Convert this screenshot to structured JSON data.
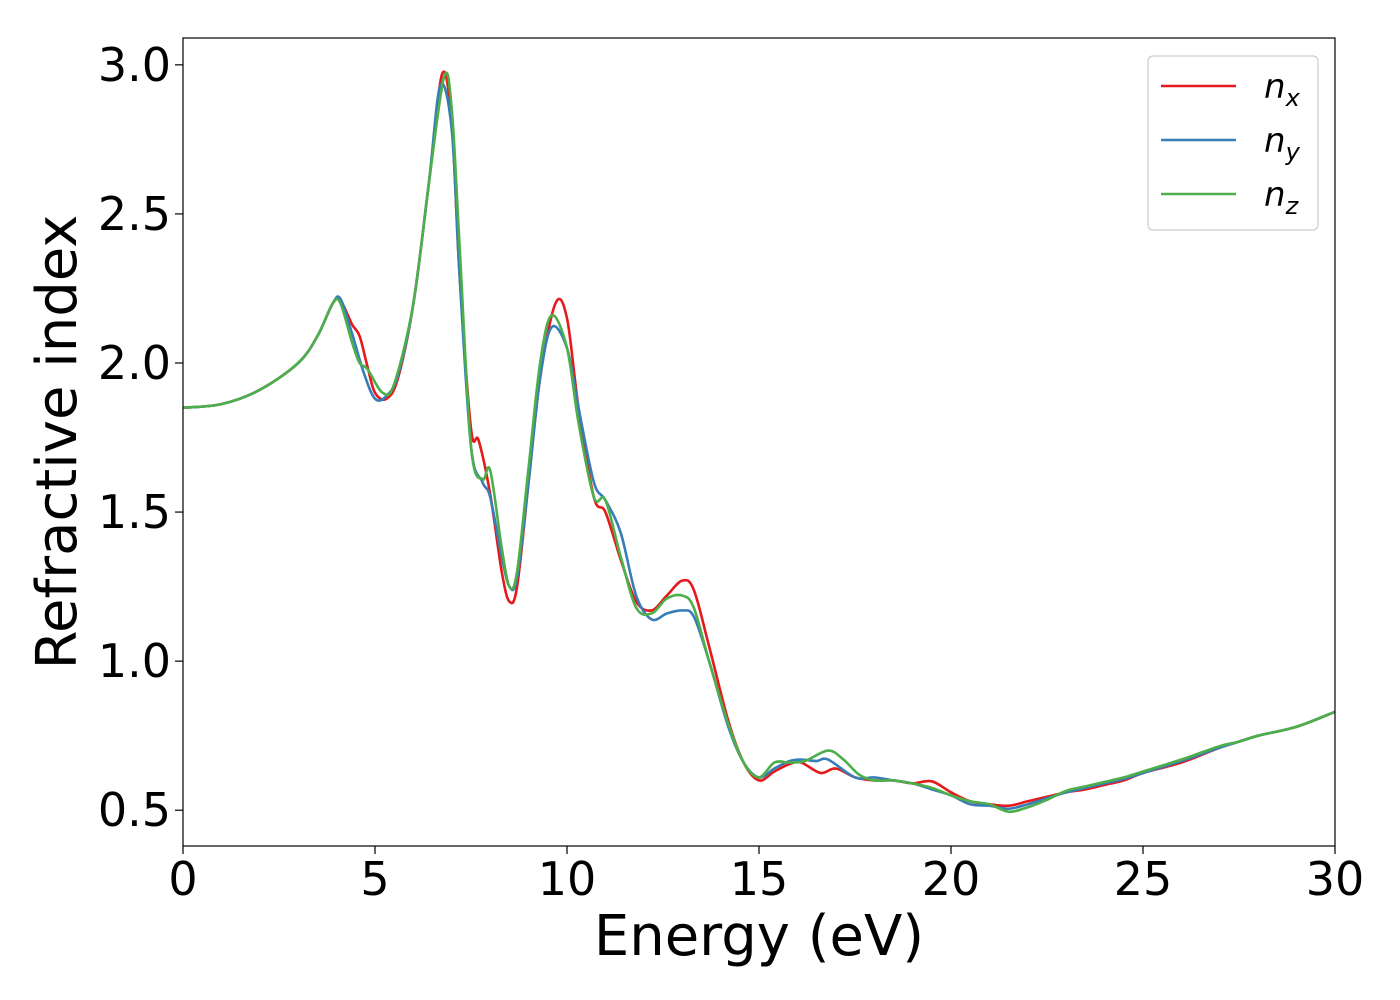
{
  "chart_data": {
    "type": "line",
    "xlabel": "Energy (eV)",
    "ylabel": "Refractive index",
    "xlim": [
      0,
      30
    ],
    "ylim": [
      0.38,
      3.09
    ],
    "xticks": [
      0,
      5,
      10,
      15,
      20,
      25,
      30
    ],
    "xtick_labels": [
      "0",
      "5",
      "10",
      "15",
      "20",
      "25",
      "30"
    ],
    "yticks": [
      0.5,
      1.0,
      1.5,
      2.0,
      2.5,
      3.0
    ],
    "ytick_labels": [
      "0.5",
      "1.0",
      "1.5",
      "2.0",
      "2.5",
      "3.0"
    ],
    "grid": false,
    "legend_position": "top-right",
    "series": [
      {
        "name": "n",
        "subscript": "x",
        "color": "#e41a1c",
        "points": [
          [
            0,
            1.85
          ],
          [
            1,
            1.862
          ],
          [
            2,
            1.91
          ],
          [
            3,
            2.0
          ],
          [
            3.5,
            2.09
          ],
          [
            3.9,
            2.2
          ],
          [
            4.1,
            2.21
          ],
          [
            4.4,
            2.13
          ],
          [
            4.6,
            2.09
          ],
          [
            4.8,
            1.99
          ],
          [
            5.0,
            1.9
          ],
          [
            5.3,
            1.88
          ],
          [
            5.6,
            1.95
          ],
          [
            6.0,
            2.2
          ],
          [
            6.4,
            2.6
          ],
          [
            6.75,
            2.97
          ],
          [
            7.0,
            2.8
          ],
          [
            7.2,
            2.3
          ],
          [
            7.5,
            1.78
          ],
          [
            7.7,
            1.74
          ],
          [
            8.0,
            1.56
          ],
          [
            8.3,
            1.3
          ],
          [
            8.5,
            1.2
          ],
          [
            8.7,
            1.25
          ],
          [
            9.0,
            1.6
          ],
          [
            9.3,
            1.95
          ],
          [
            9.7,
            2.2
          ],
          [
            10.0,
            2.15
          ],
          [
            10.3,
            1.85
          ],
          [
            10.7,
            1.55
          ],
          [
            11.0,
            1.5
          ],
          [
            11.4,
            1.34
          ],
          [
            11.8,
            1.2
          ],
          [
            12.2,
            1.17
          ],
          [
            12.6,
            1.22
          ],
          [
            13.0,
            1.27
          ],
          [
            13.3,
            1.24
          ],
          [
            13.7,
            1.05
          ],
          [
            14.2,
            0.8
          ],
          [
            14.6,
            0.66
          ],
          [
            15.0,
            0.6
          ],
          [
            15.4,
            0.63
          ],
          [
            15.8,
            0.655
          ],
          [
            16.1,
            0.66
          ],
          [
            16.6,
            0.625
          ],
          [
            17.0,
            0.64
          ],
          [
            17.5,
            0.61
          ],
          [
            18.0,
            0.6
          ],
          [
            18.5,
            0.6
          ],
          [
            19.0,
            0.59
          ],
          [
            19.5,
            0.597
          ],
          [
            20.0,
            0.56
          ],
          [
            20.5,
            0.53
          ],
          [
            21.0,
            0.52
          ],
          [
            21.5,
            0.515
          ],
          [
            22.0,
            0.53
          ],
          [
            22.5,
            0.545
          ],
          [
            23.0,
            0.56
          ],
          [
            23.5,
            0.57
          ],
          [
            24.0,
            0.585
          ],
          [
            24.5,
            0.6
          ],
          [
            25.0,
            0.625
          ],
          [
            26.0,
            0.66
          ],
          [
            27.0,
            0.71
          ],
          [
            27.5,
            0.73
          ],
          [
            28.0,
            0.75
          ],
          [
            29.0,
            0.78
          ],
          [
            30.0,
            0.83
          ]
        ]
      },
      {
        "name": "n",
        "subscript": "y",
        "color": "#377eb8",
        "points": [
          [
            0,
            1.85
          ],
          [
            1,
            1.862
          ],
          [
            2,
            1.91
          ],
          [
            3,
            2.0
          ],
          [
            3.5,
            2.09
          ],
          [
            3.9,
            2.2
          ],
          [
            4.1,
            2.215
          ],
          [
            4.4,
            2.1
          ],
          [
            4.7,
            1.97
          ],
          [
            5.0,
            1.88
          ],
          [
            5.3,
            1.89
          ],
          [
            5.6,
            1.96
          ],
          [
            6.0,
            2.2
          ],
          [
            6.4,
            2.6
          ],
          [
            6.7,
            2.93
          ],
          [
            7.0,
            2.78
          ],
          [
            7.2,
            2.3
          ],
          [
            7.5,
            1.72
          ],
          [
            7.8,
            1.6
          ],
          [
            8.0,
            1.55
          ],
          [
            8.3,
            1.35
          ],
          [
            8.5,
            1.25
          ],
          [
            8.7,
            1.28
          ],
          [
            9.0,
            1.6
          ],
          [
            9.3,
            1.95
          ],
          [
            9.6,
            2.12
          ],
          [
            10.0,
            2.05
          ],
          [
            10.3,
            1.85
          ],
          [
            10.7,
            1.6
          ],
          [
            11.0,
            1.54
          ],
          [
            11.4,
            1.43
          ],
          [
            11.8,
            1.22
          ],
          [
            12.2,
            1.14
          ],
          [
            12.6,
            1.16
          ],
          [
            13.0,
            1.17
          ],
          [
            13.3,
            1.15
          ],
          [
            13.7,
            1.0
          ],
          [
            14.2,
            0.78
          ],
          [
            14.6,
            0.66
          ],
          [
            15.0,
            0.61
          ],
          [
            15.4,
            0.64
          ],
          [
            15.8,
            0.665
          ],
          [
            16.1,
            0.67
          ],
          [
            16.5,
            0.665
          ],
          [
            16.8,
            0.67
          ],
          [
            17.5,
            0.61
          ],
          [
            18.0,
            0.61
          ],
          [
            18.5,
            0.6
          ],
          [
            19.0,
            0.59
          ],
          [
            19.5,
            0.57
          ],
          [
            20.0,
            0.55
          ],
          [
            20.5,
            0.52
          ],
          [
            21.0,
            0.515
          ],
          [
            21.5,
            0.505
          ],
          [
            22.0,
            0.52
          ],
          [
            22.5,
            0.54
          ],
          [
            23.0,
            0.56
          ],
          [
            23.5,
            0.575
          ],
          [
            24.0,
            0.59
          ],
          [
            24.5,
            0.605
          ],
          [
            25.0,
            0.625
          ],
          [
            26.0,
            0.665
          ],
          [
            27.0,
            0.71
          ],
          [
            27.5,
            0.73
          ],
          [
            28.0,
            0.75
          ],
          [
            29.0,
            0.78
          ],
          [
            30.0,
            0.83
          ]
        ]
      },
      {
        "name": "n",
        "subscript": "z",
        "color": "#4daf4a",
        "points": [
          [
            0,
            1.85
          ],
          [
            1,
            1.862
          ],
          [
            2,
            1.91
          ],
          [
            3,
            2.0
          ],
          [
            3.5,
            2.09
          ],
          [
            3.9,
            2.2
          ],
          [
            4.1,
            2.2
          ],
          [
            4.4,
            2.07
          ],
          [
            4.6,
            2.0
          ],
          [
            4.8,
            1.98
          ],
          [
            5.2,
            1.9
          ],
          [
            5.5,
            1.93
          ],
          [
            6.0,
            2.2
          ],
          [
            6.4,
            2.6
          ],
          [
            6.8,
            2.96
          ],
          [
            7.0,
            2.85
          ],
          [
            7.2,
            2.4
          ],
          [
            7.5,
            1.72
          ],
          [
            7.8,
            1.61
          ],
          [
            8.0,
            1.64
          ],
          [
            8.3,
            1.38
          ],
          [
            8.5,
            1.25
          ],
          [
            8.7,
            1.3
          ],
          [
            9.0,
            1.65
          ],
          [
            9.3,
            2.0
          ],
          [
            9.6,
            2.16
          ],
          [
            10.0,
            2.05
          ],
          [
            10.3,
            1.8
          ],
          [
            10.7,
            1.55
          ],
          [
            11.0,
            1.54
          ],
          [
            11.4,
            1.35
          ],
          [
            11.8,
            1.18
          ],
          [
            12.2,
            1.16
          ],
          [
            12.6,
            1.21
          ],
          [
            13.0,
            1.22
          ],
          [
            13.3,
            1.18
          ],
          [
            13.7,
            1.0
          ],
          [
            14.2,
            0.79
          ],
          [
            14.6,
            0.66
          ],
          [
            15.0,
            0.61
          ],
          [
            15.4,
            0.66
          ],
          [
            15.8,
            0.66
          ],
          [
            16.2,
            0.665
          ],
          [
            16.8,
            0.7
          ],
          [
            17.2,
            0.67
          ],
          [
            17.6,
            0.62
          ],
          [
            18.0,
            0.6
          ],
          [
            18.5,
            0.6
          ],
          [
            19.0,
            0.59
          ],
          [
            19.5,
            0.575
          ],
          [
            20.0,
            0.55
          ],
          [
            20.5,
            0.53
          ],
          [
            21.0,
            0.52
          ],
          [
            21.5,
            0.495
          ],
          [
            22.0,
            0.51
          ],
          [
            22.5,
            0.535
          ],
          [
            23.0,
            0.565
          ],
          [
            23.5,
            0.58
          ],
          [
            24.0,
            0.595
          ],
          [
            24.5,
            0.61
          ],
          [
            25.0,
            0.63
          ],
          [
            26.0,
            0.67
          ],
          [
            27.0,
            0.715
          ],
          [
            27.5,
            0.73
          ],
          [
            28.0,
            0.75
          ],
          [
            29.0,
            0.78
          ],
          [
            30.0,
            0.83
          ]
        ]
      }
    ]
  }
}
